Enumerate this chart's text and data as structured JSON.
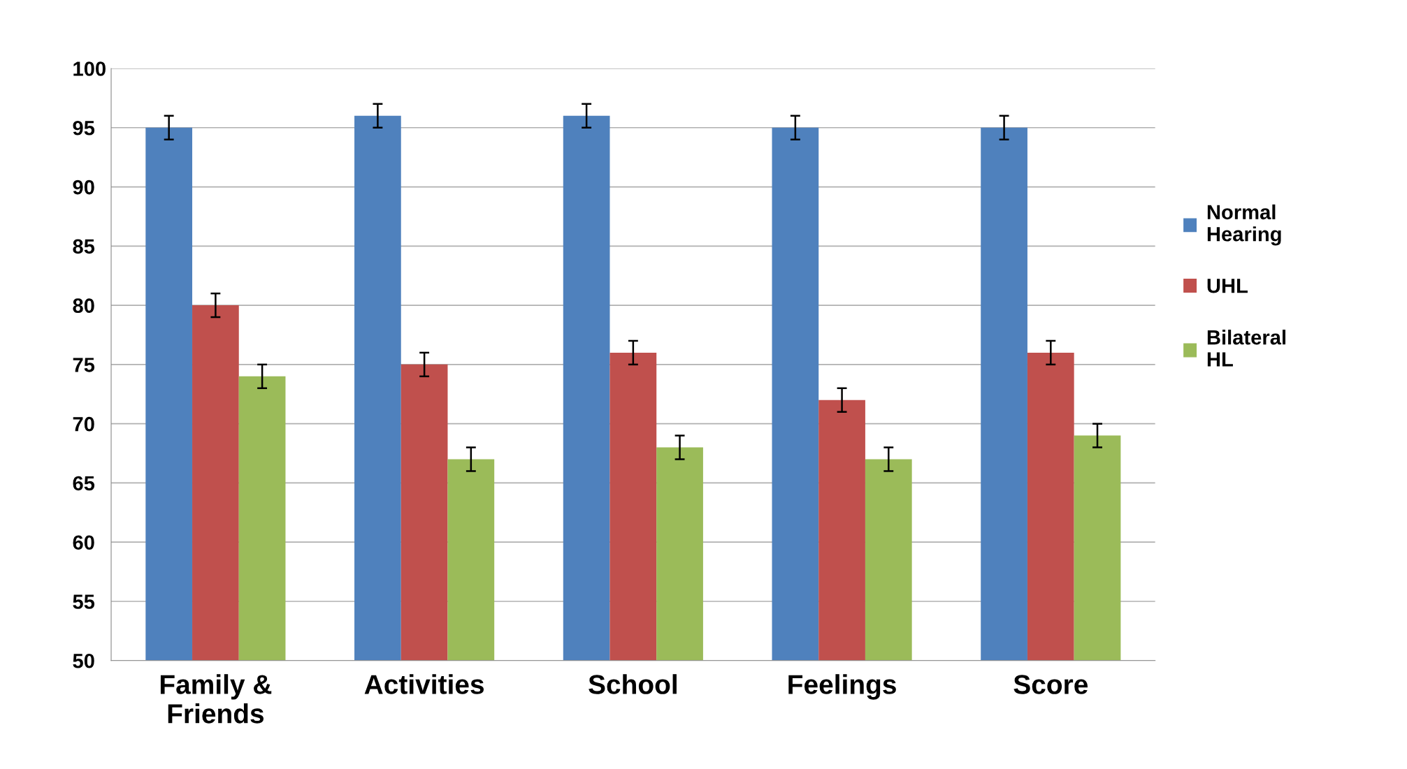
{
  "chart_data": {
    "type": "bar",
    "categories": [
      "Family & Friends",
      "Activities",
      "School",
      "Feelings",
      "Score"
    ],
    "series": [
      {
        "name": "Normal Hearing",
        "color": "#4f81bd",
        "values": [
          95,
          96,
          96,
          95,
          95
        ],
        "errors": [
          1,
          1,
          1,
          1,
          1
        ]
      },
      {
        "name": "UHL",
        "color": "#c0504d",
        "values": [
          80,
          75,
          76,
          72,
          76
        ],
        "errors": [
          1,
          1,
          1,
          1,
          1
        ]
      },
      {
        "name": "Bilateral HL",
        "color": "#9bbb59",
        "values": [
          74,
          67,
          68,
          67,
          69
        ],
        "errors": [
          1,
          1,
          1,
          1,
          1
        ]
      }
    ],
    "ylim": [
      50,
      100
    ],
    "yticks": [
      50,
      55,
      60,
      65,
      70,
      75,
      80,
      85,
      90,
      95,
      100
    ],
    "grid": "y",
    "legend": "right"
  }
}
